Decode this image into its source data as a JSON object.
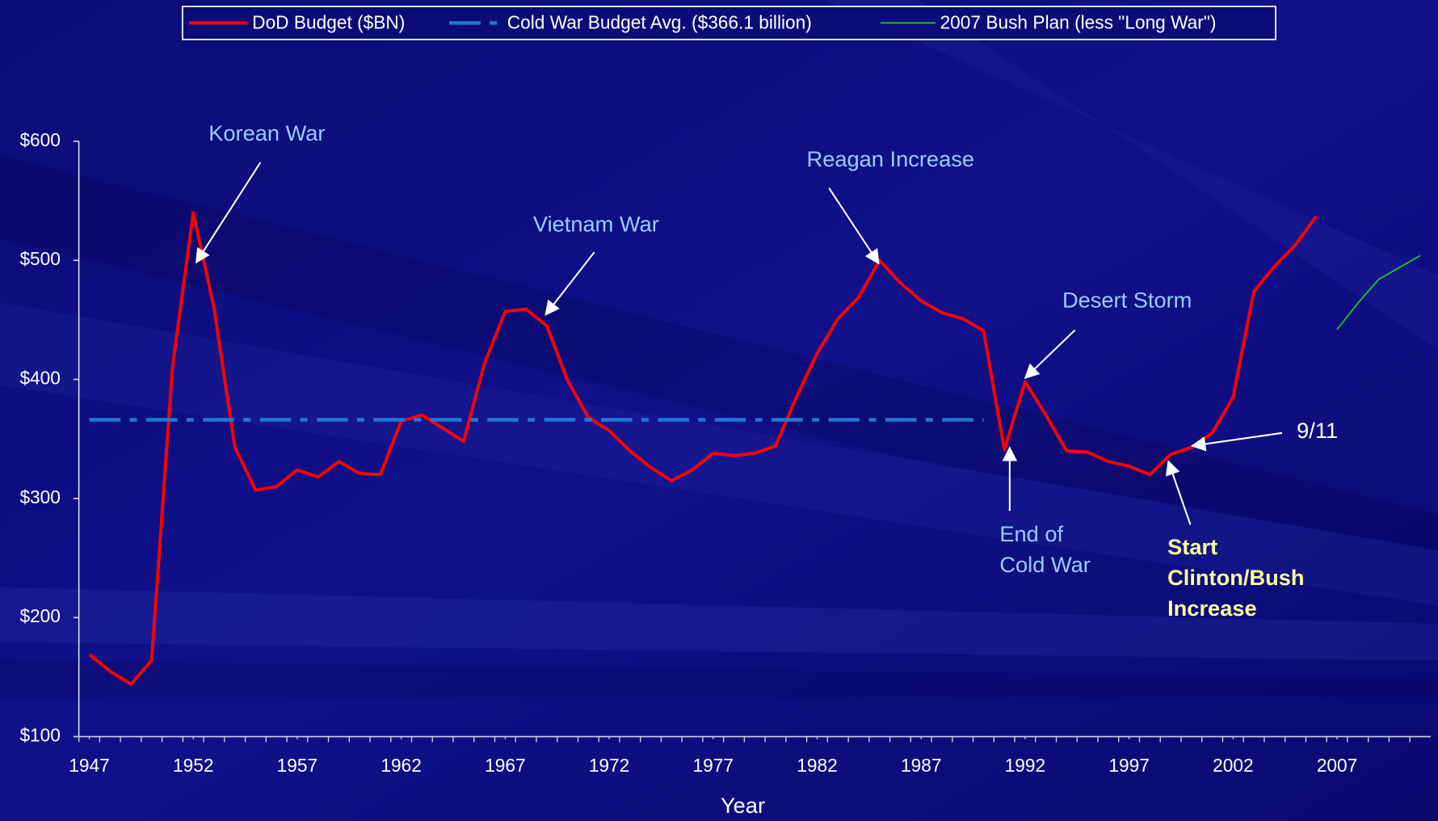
{
  "chart_data": {
    "type": "line",
    "x_label": "Year",
    "xlim": [
      1946.5,
      2011.5
    ],
    "xticks": [
      1947,
      1952,
      1957,
      1962,
      1967,
      1972,
      1977,
      1982,
      1987,
      1992,
      1997,
      2002,
      2007
    ],
    "ylim": [
      100,
      600
    ],
    "yticks": [
      {
        "value": 100,
        "label": "$100"
      },
      {
        "value": 200,
        "label": "$200"
      },
      {
        "value": 300,
        "label": "$300"
      },
      {
        "value": 400,
        "label": "$400"
      },
      {
        "value": 500,
        "label": "$500"
      },
      {
        "value": 600,
        "label": "$600"
      }
    ],
    "legend": "top",
    "series": [
      {
        "name": "DoD Budget ($BN)",
        "color": "#ff0000",
        "style": "solid",
        "x": [
          1947,
          1948,
          1949,
          1950,
          1951,
          1952,
          1953,
          1954,
          1955,
          1956,
          1957,
          1958,
          1959,
          1960,
          1961,
          1962,
          1963,
          1964,
          1965,
          1966,
          1967,
          1968,
          1969,
          1970,
          1971,
          1972,
          1973,
          1974,
          1975,
          1976,
          1977,
          1978,
          1979,
          1980,
          1981,
          1982,
          1983,
          1984,
          1985,
          1986,
          1987,
          1988,
          1989,
          1990,
          1991,
          1992,
          1993,
          1994,
          1995,
          1996,
          1997,
          1998,
          1999,
          2000,
          2001,
          2002,
          2003,
          2004,
          2005,
          2006
        ],
        "values": [
          169,
          155,
          144,
          164,
          410,
          540,
          460,
          343,
          307,
          310,
          324,
          318,
          331,
          321,
          320,
          365,
          370,
          359,
          348,
          413,
          457,
          459,
          445,
          399,
          368,
          357,
          340,
          326,
          315,
          324,
          338,
          336,
          338,
          344,
          385,
          422,
          451,
          469,
          500,
          481,
          466,
          456,
          451,
          441,
          341,
          398,
          370,
          340,
          339,
          331,
          327,
          320,
          337,
          343,
          355,
          385,
          474,
          495,
          513,
          537
        ]
      },
      {
        "name": "Cold War Budget Avg. ($366.1 billion)",
        "color": "#1f78d6",
        "style": "dashdot",
        "x": [
          1947,
          1990
        ],
        "values": [
          366.1,
          366.1
        ]
      },
      {
        "name": "2007 Bush Plan (less \"Long War\")",
        "color": "#22cc22",
        "style": "thin",
        "x": [
          2007,
          2008,
          2009,
          2010,
          2011
        ],
        "values": [
          442,
          464,
          484,
          494,
          504
        ]
      }
    ],
    "annotations": [
      {
        "lines": [
          "Korean War"
        ]
      },
      {
        "lines": [
          "Vietnam War"
        ]
      },
      {
        "lines": [
          "Reagan Increase"
        ]
      },
      {
        "lines": [
          "Desert Storm"
        ]
      },
      {
        "lines": [
          "End of",
          "Cold War"
        ]
      },
      {
        "lines": [
          "9/11"
        ]
      },
      {
        "lines": [
          "Start",
          "Clinton/Bush",
          "Increase"
        ]
      }
    ]
  }
}
